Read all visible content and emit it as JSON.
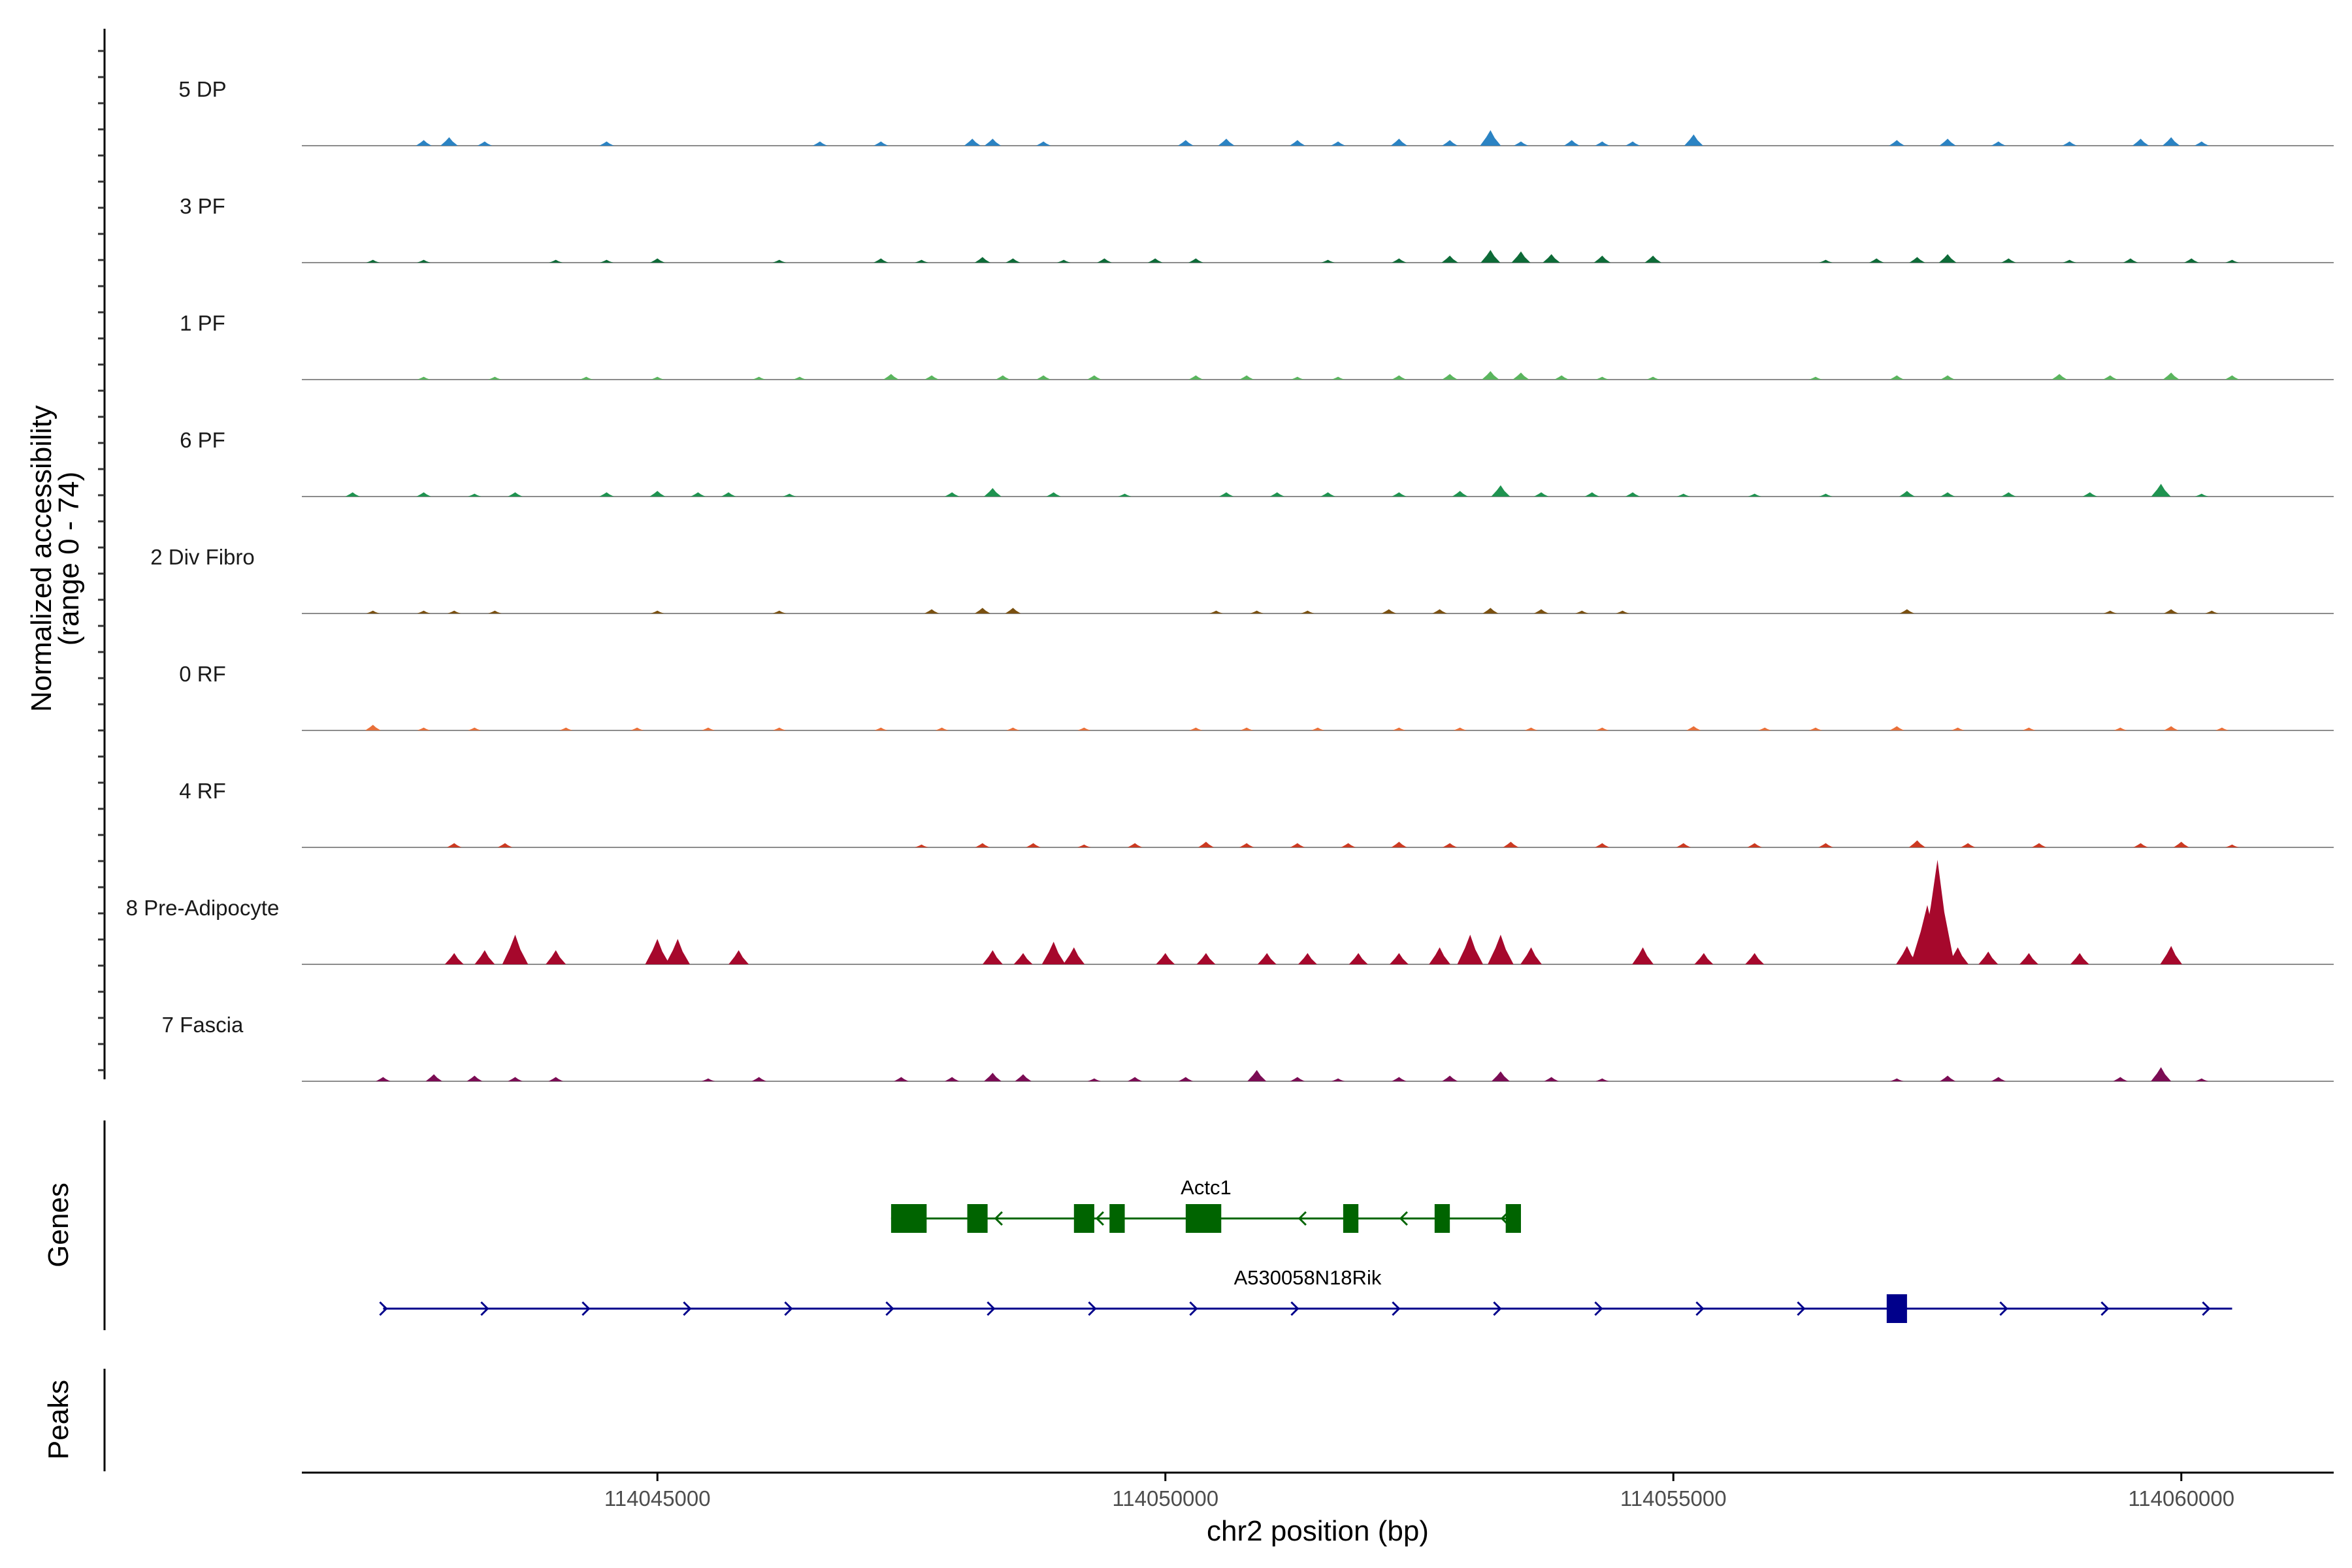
{
  "chart_data": {
    "type": "area",
    "region": {
      "chrom": "chr2",
      "start": 114041500,
      "end": 114061500
    },
    "xlabel": "chr2 position (bp)",
    "coverage_ylabel": [
      "Normalized accessibility",
      "(range 0 - 74)"
    ],
    "ylim": [
      0,
      74
    ],
    "x_ticks": [
      114045000,
      114050000,
      114055000,
      114060000
    ],
    "x_tick_labels": [
      "114045000",
      "114050000",
      "114055000",
      "114060000"
    ],
    "series": [
      {
        "name": "5 DP",
        "color": "#2b83c3",
        "peaks": [
          [
            114042700,
            4
          ],
          [
            114042950,
            6
          ],
          [
            114043300,
            3
          ],
          [
            114044500,
            3
          ],
          [
            114046600,
            3
          ],
          [
            114047200,
            3
          ],
          [
            114048100,
            5
          ],
          [
            114048300,
            5
          ],
          [
            114048800,
            3
          ],
          [
            114050200,
            4
          ],
          [
            114050600,
            5
          ],
          [
            114051300,
            4
          ],
          [
            114051700,
            3
          ],
          [
            114052300,
            5
          ],
          [
            114052800,
            4
          ],
          [
            114053200,
            11
          ],
          [
            114053500,
            3
          ],
          [
            114054000,
            4
          ],
          [
            114054300,
            3
          ],
          [
            114054600,
            3
          ],
          [
            114055200,
            8
          ],
          [
            114057200,
            4
          ],
          [
            114057700,
            5
          ],
          [
            114058200,
            3
          ],
          [
            114058900,
            3
          ],
          [
            114059600,
            5
          ],
          [
            114059900,
            6
          ],
          [
            114060200,
            3
          ]
        ]
      },
      {
        "name": "3 PF",
        "color": "#0e6b38",
        "peaks": [
          [
            114042200,
            2
          ],
          [
            114042700,
            2
          ],
          [
            114044000,
            2
          ],
          [
            114044500,
            2
          ],
          [
            114045000,
            3
          ],
          [
            114046200,
            2
          ],
          [
            114047200,
            3
          ],
          [
            114047600,
            2
          ],
          [
            114048200,
            4
          ],
          [
            114048500,
            3
          ],
          [
            114049000,
            2
          ],
          [
            114049400,
            3
          ],
          [
            114049900,
            3
          ],
          [
            114050300,
            3
          ],
          [
            114051600,
            2
          ],
          [
            114052300,
            3
          ],
          [
            114052800,
            5
          ],
          [
            114053200,
            9
          ],
          [
            114053500,
            8
          ],
          [
            114053800,
            6
          ],
          [
            114054300,
            5
          ],
          [
            114054800,
            5
          ],
          [
            114056500,
            2
          ],
          [
            114057000,
            3
          ],
          [
            114057400,
            4
          ],
          [
            114057700,
            6
          ],
          [
            114058300,
            3
          ],
          [
            114058900,
            2
          ],
          [
            114059500,
            3
          ],
          [
            114060100,
            3
          ],
          [
            114060500,
            2
          ]
        ]
      },
      {
        "name": "1 PF",
        "color": "#5ab55e",
        "peaks": [
          [
            114042700,
            2
          ],
          [
            114043400,
            2
          ],
          [
            114044300,
            2
          ],
          [
            114045000,
            2
          ],
          [
            114046000,
            2
          ],
          [
            114046400,
            2
          ],
          [
            114047300,
            4
          ],
          [
            114047700,
            3
          ],
          [
            114048400,
            3
          ],
          [
            114048800,
            3
          ],
          [
            114049300,
            3
          ],
          [
            114050300,
            3
          ],
          [
            114050800,
            3
          ],
          [
            114051300,
            2
          ],
          [
            114051700,
            2
          ],
          [
            114052300,
            3
          ],
          [
            114052800,
            4
          ],
          [
            114053200,
            6
          ],
          [
            114053500,
            5
          ],
          [
            114053900,
            3
          ],
          [
            114054300,
            2
          ],
          [
            114054800,
            2
          ],
          [
            114056400,
            2
          ],
          [
            114057200,
            3
          ],
          [
            114057700,
            3
          ],
          [
            114058800,
            4
          ],
          [
            114059300,
            3
          ],
          [
            114059900,
            5
          ],
          [
            114060500,
            3
          ]
        ]
      },
      {
        "name": "6 PF",
        "color": "#1f9350",
        "peaks": [
          [
            114042000,
            3
          ],
          [
            114042700,
            3
          ],
          [
            114043200,
            2
          ],
          [
            114043600,
            3
          ],
          [
            114044500,
            3
          ],
          [
            114045000,
            4
          ],
          [
            114045400,
            3
          ],
          [
            114045700,
            3
          ],
          [
            114046300,
            2
          ],
          [
            114047900,
            3
          ],
          [
            114048300,
            6
          ],
          [
            114048900,
            3
          ],
          [
            114049600,
            2
          ],
          [
            114050600,
            3
          ],
          [
            114051100,
            3
          ],
          [
            114051600,
            3
          ],
          [
            114052300,
            3
          ],
          [
            114052900,
            4
          ],
          [
            114053300,
            8
          ],
          [
            114053700,
            3
          ],
          [
            114054200,
            3
          ],
          [
            114054600,
            3
          ],
          [
            114055100,
            2
          ],
          [
            114055800,
            2
          ],
          [
            114056500,
            2
          ],
          [
            114057300,
            4
          ],
          [
            114057700,
            3
          ],
          [
            114058300,
            3
          ],
          [
            114059100,
            3
          ],
          [
            114059800,
            9
          ],
          [
            114060200,
            2
          ]
        ]
      },
      {
        "name": "2 Div Fibro",
        "color": "#7a5010",
        "peaks": [
          [
            114042200,
            2
          ],
          [
            114042700,
            2
          ],
          [
            114043000,
            2
          ],
          [
            114043400,
            2
          ],
          [
            114045000,
            2
          ],
          [
            114046200,
            2
          ],
          [
            114047700,
            3
          ],
          [
            114048200,
            4
          ],
          [
            114048500,
            4
          ],
          [
            114050500,
            2
          ],
          [
            114050900,
            2
          ],
          [
            114051400,
            2
          ],
          [
            114052200,
            3
          ],
          [
            114052700,
            3
          ],
          [
            114053200,
            4
          ],
          [
            114053700,
            3
          ],
          [
            114054100,
            2
          ],
          [
            114054500,
            2
          ],
          [
            114057300,
            3
          ],
          [
            114059300,
            2
          ],
          [
            114059900,
            3
          ],
          [
            114060300,
            2
          ]
        ]
      },
      {
        "name": "0 RF",
        "color": "#e8703a",
        "peaks": [
          [
            114042200,
            4
          ],
          [
            114042700,
            2
          ],
          [
            114043200,
            2
          ],
          [
            114044100,
            2
          ],
          [
            114044800,
            2
          ],
          [
            114045500,
            2
          ],
          [
            114046200,
            2
          ],
          [
            114047200,
            2
          ],
          [
            114047800,
            2
          ],
          [
            114048500,
            2
          ],
          [
            114049200,
            2
          ],
          [
            114050300,
            2
          ],
          [
            114050800,
            2
          ],
          [
            114051500,
            2
          ],
          [
            114052300,
            2
          ],
          [
            114052900,
            2
          ],
          [
            114053600,
            2
          ],
          [
            114054300,
            2
          ],
          [
            114055200,
            3
          ],
          [
            114055900,
            2
          ],
          [
            114056400,
            2
          ],
          [
            114057200,
            3
          ],
          [
            114057800,
            2
          ],
          [
            114058500,
            2
          ],
          [
            114059400,
            2
          ],
          [
            114059900,
            3
          ],
          [
            114060400,
            2
          ]
        ]
      },
      {
        "name": "4 RF",
        "color": "#cc3a22",
        "peaks": [
          [
            114043000,
            3
          ],
          [
            114043500,
            3
          ],
          [
            114047600,
            2
          ],
          [
            114048200,
            3
          ],
          [
            114048700,
            3
          ],
          [
            114049200,
            2
          ],
          [
            114049700,
            3
          ],
          [
            114050400,
            4
          ],
          [
            114050800,
            3
          ],
          [
            114051300,
            3
          ],
          [
            114051800,
            3
          ],
          [
            114052300,
            4
          ],
          [
            114052800,
            3
          ],
          [
            114053400,
            4
          ],
          [
            114054300,
            3
          ],
          [
            114055100,
            3
          ],
          [
            114055800,
            3
          ],
          [
            114056500,
            3
          ],
          [
            114057400,
            5
          ],
          [
            114057900,
            3
          ],
          [
            114058600,
            3
          ],
          [
            114059600,
            3
          ],
          [
            114060000,
            4
          ],
          [
            114060500,
            2
          ]
        ]
      },
      {
        "name": "8 Pre-Adipocyte",
        "color": "#a6082c",
        "peaks": [
          [
            114043000,
            8
          ],
          [
            114043300,
            10
          ],
          [
            114043600,
            21
          ],
          [
            114044000,
            10
          ],
          [
            114045000,
            18
          ],
          [
            114045200,
            18
          ],
          [
            114045800,
            10
          ],
          [
            114048300,
            10
          ],
          [
            114048600,
            8
          ],
          [
            114048900,
            16
          ],
          [
            114049100,
            12
          ],
          [
            114050000,
            8
          ],
          [
            114050400,
            8
          ],
          [
            114051000,
            8
          ],
          [
            114051400,
            8
          ],
          [
            114051900,
            8
          ],
          [
            114052300,
            8
          ],
          [
            114052700,
            12
          ],
          [
            114053000,
            21
          ],
          [
            114053300,
            21
          ],
          [
            114053600,
            12
          ],
          [
            114054700,
            12
          ],
          [
            114055300,
            8
          ],
          [
            114055800,
            8
          ],
          [
            114057300,
            13
          ],
          [
            114057500,
            42
          ],
          [
            114057600,
            74
          ],
          [
            114057800,
            12
          ],
          [
            114058100,
            9
          ],
          [
            114058500,
            8
          ],
          [
            114059000,
            8
          ],
          [
            114059900,
            13
          ]
        ]
      },
      {
        "name": "7 Fascia",
        "color": "#7b0c54",
        "peaks": [
          [
            114042300,
            3
          ],
          [
            114042800,
            5
          ],
          [
            114043200,
            4
          ],
          [
            114043600,
            3
          ],
          [
            114044000,
            3
          ],
          [
            114045500,
            2
          ],
          [
            114046000,
            3
          ],
          [
            114047400,
            3
          ],
          [
            114047900,
            3
          ],
          [
            114048300,
            6
          ],
          [
            114048600,
            5
          ],
          [
            114049300,
            2
          ],
          [
            114049700,
            3
          ],
          [
            114050200,
            3
          ],
          [
            114050900,
            8
          ],
          [
            114051300,
            3
          ],
          [
            114051700,
            2
          ],
          [
            114052300,
            3
          ],
          [
            114052800,
            4
          ],
          [
            114053300,
            7
          ],
          [
            114053800,
            3
          ],
          [
            114054300,
            2
          ],
          [
            114057200,
            2
          ],
          [
            114057700,
            4
          ],
          [
            114058200,
            3
          ],
          [
            114059400,
            3
          ],
          [
            114059800,
            10
          ],
          [
            114060200,
            2
          ]
        ]
      }
    ],
    "genes_label": "Genes",
    "peaks_label": "Peaks",
    "genes": [
      {
        "name": "Actc1",
        "strand": "-",
        "start": 114047300,
        "end": 114053500,
        "color": "#006400",
        "exons": [
          [
            114047300,
            114047650
          ],
          [
            114048050,
            114048250
          ],
          [
            114049100,
            114049300
          ],
          [
            114049450,
            114049600
          ],
          [
            114050200,
            114050550
          ],
          [
            114051750,
            114051900
          ],
          [
            114052650,
            114052800
          ],
          [
            114053350,
            114053500
          ]
        ]
      },
      {
        "name": "A530058N18Rik",
        "strand": "+",
        "start": 114042300,
        "end": 114060500,
        "color": "#00008b",
        "exons": [
          [
            114057100,
            114057300
          ]
        ]
      }
    ]
  }
}
